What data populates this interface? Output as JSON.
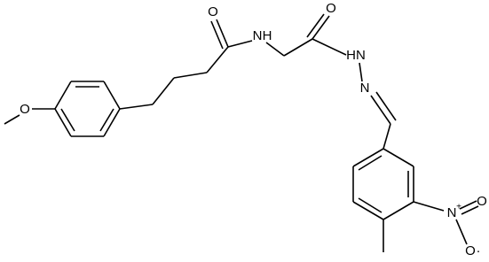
{
  "atoms": [
    {
      "label": "O"
    },
    {
      "label": "O"
    },
    {
      "label": "N"
    },
    {
      "label": "H"
    },
    {
      "label": "O"
    },
    {
      "label": "HN"
    },
    {
      "label": "N"
    },
    {
      "label": "N"
    },
    {
      "label": "+"
    },
    {
      "label": "O"
    },
    {
      "label": "O"
    },
    {
      "label": "·"
    }
  ]
}
